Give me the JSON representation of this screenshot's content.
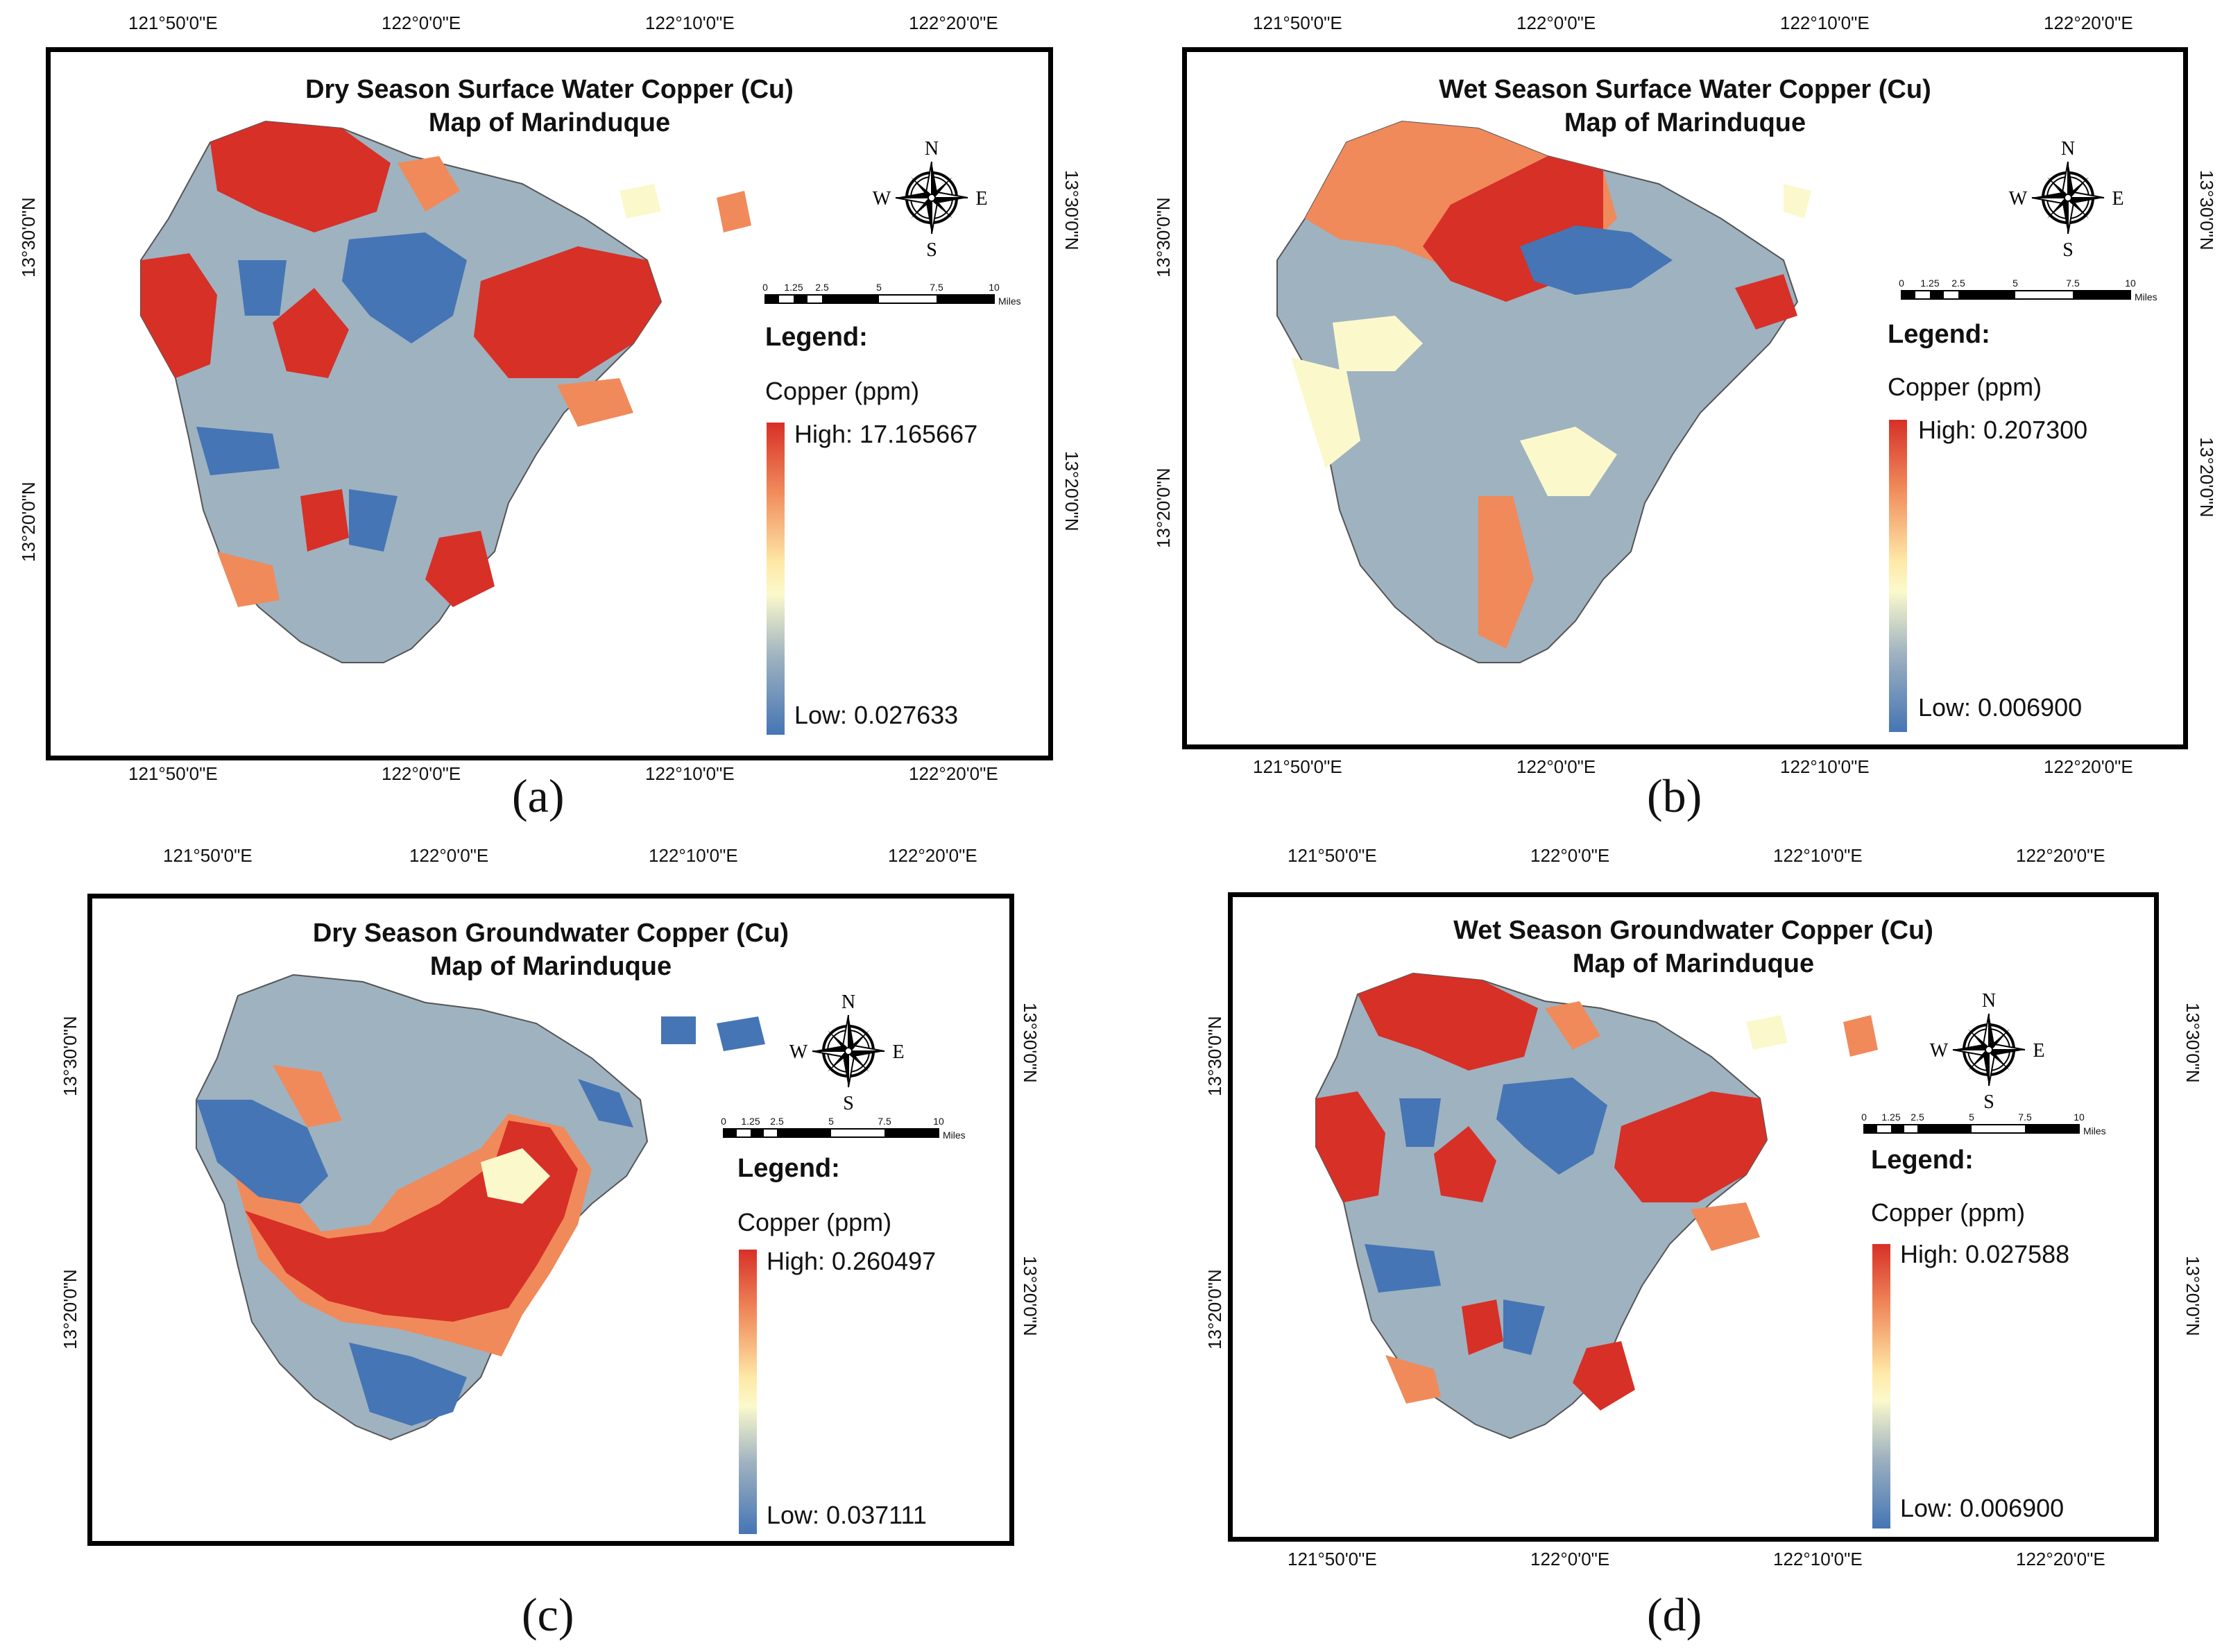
{
  "panels": [
    {
      "caption": "(a)",
      "title_line1": "Dry Season Surface Water Copper (Cu)",
      "title_line2": "Map of Marinduque",
      "legend_title": "Legend:",
      "legend_unit": "Copper (ppm)",
      "high": "High: 17.165667",
      "low": "Low: 0.027633",
      "top_lons": [
        "121°50'0\"E",
        "122°0'0\"E",
        "122°10'0\"E",
        "122°20'0\"E"
      ],
      "bottom_lons": [
        "121°50'0\"E",
        "122°0'0\"E",
        "122°10'0\"E",
        "122°20'0\"E"
      ],
      "lats": [
        "13°30'0\"N",
        "13°20'0\"N"
      ]
    },
    {
      "caption": "(b)",
      "title_line1": "Wet Season Surface Water Copper (Cu)",
      "title_line2": "Map of Marinduque",
      "legend_title": "Legend:",
      "legend_unit": "Copper (ppm)",
      "high": "High: 0.207300",
      "low": "Low: 0.006900",
      "top_lons": [
        "121°50'0\"E",
        "122°0'0\"E",
        "122°10'0\"E",
        "122°20'0\"E"
      ],
      "bottom_lons": [
        "121°50'0\"E",
        "122°0'0\"E",
        "122°10'0\"E",
        "122°20'0\"E"
      ],
      "lats": [
        "13°30'0\"N",
        "13°20'0\"N"
      ]
    },
    {
      "caption": "(c)",
      "title_line1": "Dry Season Groundwater Copper (Cu)",
      "title_line2": "Map of Marinduque",
      "legend_title": "Legend:",
      "legend_unit": "Copper (ppm)",
      "high": "High: 0.260497",
      "low": "Low: 0.037111",
      "top_lons": [
        "121°50'0\"E",
        "122°0'0\"E",
        "122°10'0\"E",
        "122°20'0\"E"
      ],
      "bottom_lons": [
        "121°50'0\"E",
        "122°0'0\"E",
        "122°10'0\"E",
        "122°20'0\"E"
      ],
      "lats": [
        "13°30'0\"N",
        "13°20'0\"N"
      ]
    },
    {
      "caption": "(d)",
      "title_line1": "Wet Season Groundwater Copper (Cu)",
      "title_line2": "Map of Marinduque",
      "legend_title": "Legend:",
      "legend_unit": "Copper (ppm)",
      "high": "High: 0.027588",
      "low": "Low: 0.006900",
      "top_lons": [
        "121°50'0\"E",
        "122°0'0\"E",
        "122°10'0\"E",
        "122°20'0\"E"
      ],
      "bottom_lons": [
        "121°50'0\"E",
        "122°0'0\"E",
        "122°10'0\"E",
        "122°20'0\"E"
      ],
      "lats": [
        "13°30'0\"N",
        "13°20'0\"N"
      ]
    }
  ],
  "compass": {
    "n": "N",
    "s": "S",
    "e": "E",
    "w": "W"
  },
  "scale": {
    "ticks": [
      "0",
      "1.25",
      "2.5",
      "5",
      "7.5",
      "10"
    ],
    "unit": "Miles"
  },
  "colors": {
    "high": "#d73027",
    "mid_high": "#f08a5b",
    "mid": "#fbf9cc",
    "mid_low": "#9fb2c0",
    "low": "#4575b4"
  }
}
